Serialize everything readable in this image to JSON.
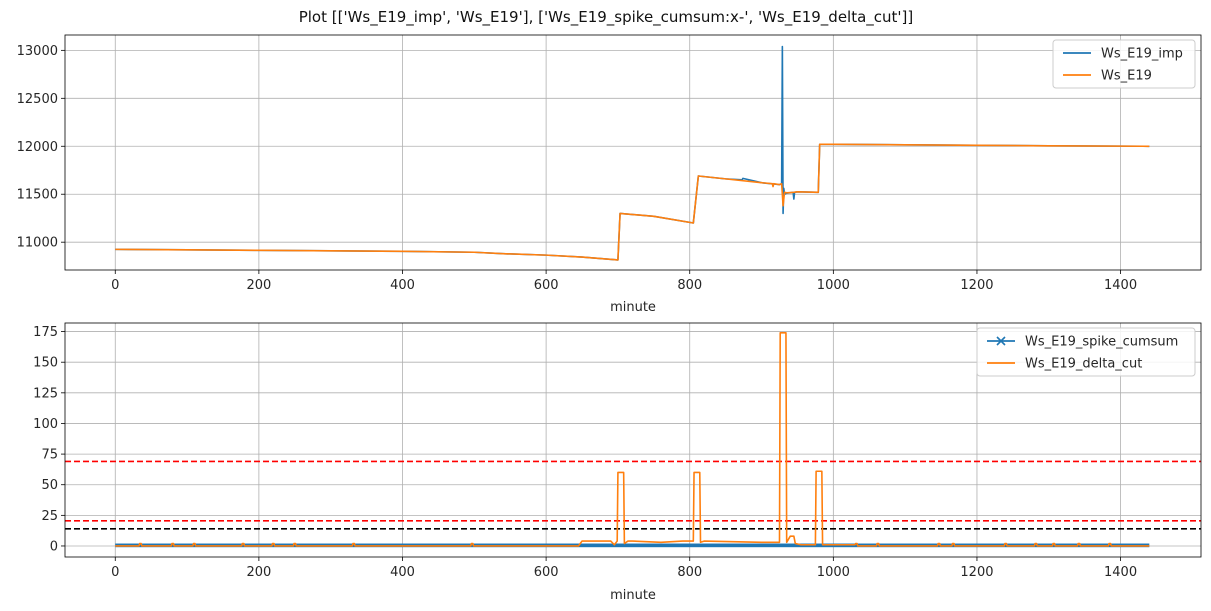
{
  "figure_title": "Plot [['Ws_E19_imp', 'Ws_E19'], ['Ws_E19_spike_cumsum:x-', 'Ws_E19_delta_cut']]",
  "colors": {
    "blue": "#1f77b4",
    "orange": "#ff7f0e",
    "red": "#ff0000",
    "black": "#000000",
    "grid": "#b0b0b0"
  },
  "chart_data": [
    {
      "type": "line",
      "xlabel": "minute",
      "ylabel": "",
      "xlim": [
        -70,
        1512
      ],
      "ylim": [
        10710,
        13160
      ],
      "xticks": [
        0,
        200,
        400,
        600,
        800,
        1000,
        1200,
        1400
      ],
      "yticks": [
        11000,
        11500,
        12000,
        12500,
        13000
      ],
      "grid": true,
      "legend": "top-right",
      "series": [
        {
          "name": "Ws_E19_imp",
          "color": "#1f77b4",
          "marker": "none",
          "x": [
            0,
            100,
            200,
            300,
            400,
            500,
            540,
            600,
            650,
            700,
            703,
            750,
            805,
            812,
            850,
            873,
            874,
            900,
            925,
            928,
            929,
            930,
            931,
            932,
            935,
            944,
            945,
            946,
            950,
            979,
            981,
            1000,
            1100,
            1200,
            1300,
            1440
          ],
          "y": [
            10925,
            10920,
            10915,
            10910,
            10905,
            10895,
            10880,
            10865,
            10845,
            10815,
            11300,
            11270,
            11200,
            11690,
            11660,
            11650,
            11665,
            11620,
            11600,
            11610,
            13040,
            11300,
            11560,
            11500,
            11510,
            11520,
            11450,
            11520,
            11525,
            11520,
            12020,
            12020,
            12015,
            12010,
            12005,
            12000
          ]
        },
        {
          "name": "Ws_E19",
          "color": "#ff7f0e",
          "marker": "none",
          "x": [
            0,
            100,
            200,
            300,
            400,
            500,
            540,
            600,
            650,
            700,
            703,
            750,
            805,
            812,
            850,
            900,
            915,
            916,
            917,
            925,
            928,
            930,
            932,
            935,
            945,
            950,
            979,
            981,
            1000,
            1100,
            1200,
            1300,
            1440
          ],
          "y": [
            10925,
            10920,
            10915,
            10910,
            10905,
            10895,
            10880,
            10865,
            10845,
            10815,
            11300,
            11270,
            11200,
            11690,
            11660,
            11620,
            11610,
            11580,
            11610,
            11600,
            11610,
            11380,
            11520,
            11515,
            11520,
            11525,
            11520,
            12020,
            12020,
            12015,
            12010,
            12005,
            12000
          ]
        }
      ]
    },
    {
      "type": "line",
      "xlabel": "minute",
      "ylabel": "",
      "xlim": [
        -70,
        1512
      ],
      "ylim": [
        -9,
        182
      ],
      "xticks": [
        0,
        200,
        400,
        600,
        800,
        1000,
        1200,
        1400
      ],
      "yticks": [
        0,
        25,
        50,
        75,
        100,
        125,
        150,
        175
      ],
      "grid": true,
      "legend": "top-right",
      "hlines": [
        {
          "y": 69,
          "color": "#ff0000",
          "style": "dashed"
        },
        {
          "y": 20.5,
          "color": "#ff0000",
          "style": "dashed"
        },
        {
          "y": 14,
          "color": "#000000",
          "style": "dashed"
        }
      ],
      "series": [
        {
          "name": "Ws_E19_spike_cumsum",
          "color": "#1f77b4",
          "marker": "x",
          "band": {
            "x_start": 0,
            "x_end": 1440,
            "y_low": -1,
            "y_high": 2
          }
        },
        {
          "name": "Ws_E19_delta_cut",
          "color": "#ff7f0e",
          "marker": "none",
          "x": [
            0,
            33,
            34,
            36,
            37,
            78,
            79,
            81,
            82,
            108,
            109,
            111,
            112,
            176,
            177,
            179,
            180,
            218,
            219,
            221,
            222,
            248,
            249,
            251,
            252,
            330,
            331,
            333,
            334,
            495,
            496,
            498,
            499,
            645,
            650,
            690,
            695,
            699,
            700,
            708,
            709,
            714,
            720,
            760,
            790,
            805,
            806,
            814,
            815,
            820,
            900,
            925,
            926,
            934,
            935,
            940,
            945,
            947,
            955,
            975,
            976,
            984,
            985,
            1030,
            1031,
            1033,
            1034,
            1060,
            1061,
            1063,
            1064,
            1145,
            1146,
            1148,
            1149,
            1165,
            1166,
            1168,
            1169,
            1238,
            1239,
            1241,
            1242,
            1280,
            1281,
            1283,
            1284,
            1305,
            1306,
            1308,
            1309,
            1340,
            1341,
            1343,
            1344,
            1383,
            1384,
            1386,
            1387,
            1440
          ],
          "y": [
            0,
            0,
            2,
            2,
            0,
            0,
            2,
            2,
            0,
            0,
            2,
            2,
            0,
            0,
            2,
            2,
            0,
            0,
            2,
            2,
            0,
            0,
            2,
            2,
            0,
            0,
            2,
            2,
            0,
            0,
            2,
            2,
            0,
            0,
            4,
            4,
            1,
            4,
            60,
            60,
            2,
            4,
            4,
            3,
            4,
            4,
            60,
            60,
            3,
            4,
            3,
            3,
            174,
            174,
            3,
            8,
            8,
            2,
            1,
            1,
            61,
            61,
            1,
            1,
            2,
            2,
            0,
            0,
            2,
            2,
            0,
            0,
            2,
            2,
            0,
            0,
            2,
            2,
            0,
            0,
            2,
            2,
            0,
            0,
            2,
            2,
            0,
            0,
            2,
            2,
            0,
            0,
            2,
            2,
            0,
            0,
            2,
            2,
            0,
            0
          ]
        }
      ]
    }
  ]
}
